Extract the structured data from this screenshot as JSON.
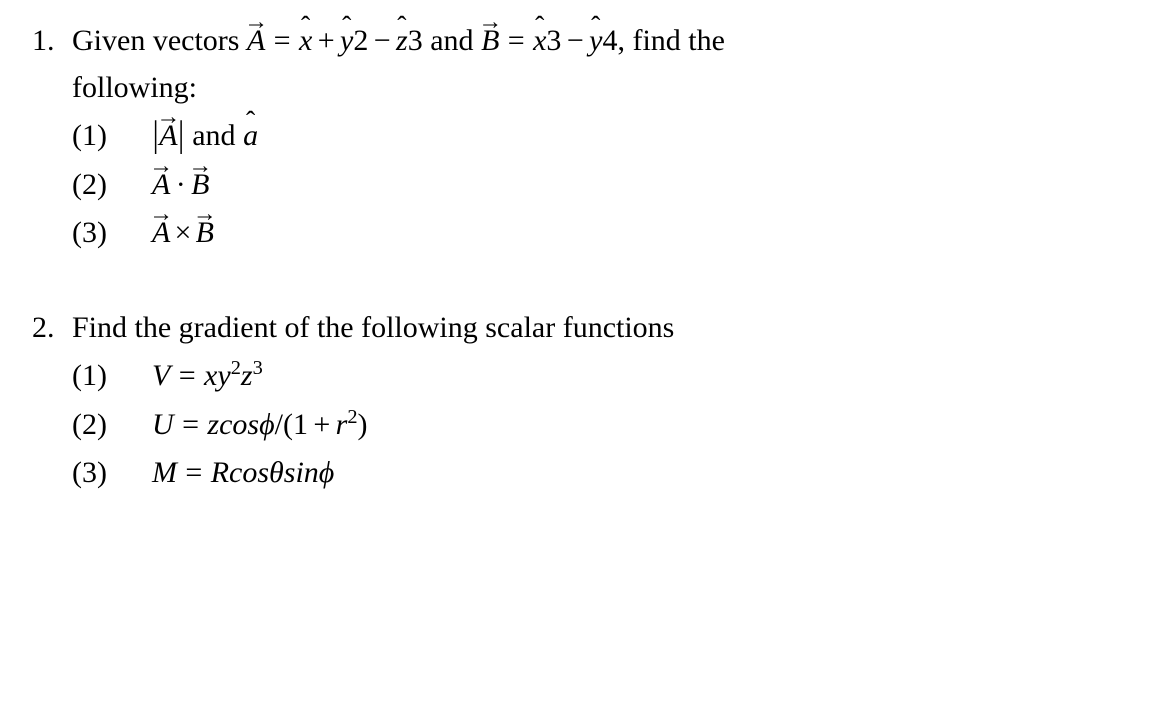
{
  "font_family": "Times New Roman",
  "base_fontsize_pt": 22,
  "text_color": "#000000",
  "background_color": "#ffffff",
  "problems": [
    {
      "number": "1.",
      "intro_before_A": "Given vectors ",
      "A_letter": "A",
      "eq1": "=",
      "xhat": "x",
      "plus": "+",
      "yhat": "y",
      "two": "2",
      "minus1": "−",
      "zhat": "z",
      "three": "3",
      "and_word": " and ",
      "B_letter": "B",
      "eq2": "=",
      "xhat2": "x",
      "three2": "3",
      "minus2": "−",
      "yhat2": "y",
      "four": "4",
      "tail": ", find the",
      "line2": "following:",
      "subs": [
        {
          "num": "(1)",
          "A": "A",
          "and": " and ",
          "ahat": "a"
        },
        {
          "num": "(2)",
          "A": "A",
          "B": "B"
        },
        {
          "num": "(3)",
          "A": "A",
          "B": "B"
        }
      ]
    },
    {
      "number": "2.",
      "intro": "Find the gradient of the following scalar functions",
      "subs": [
        {
          "num": "(1)",
          "lhs": "V",
          "eq": "=",
          "x": "x",
          "y": "y",
          "y_exp": "2",
          "z": "z",
          "z_exp": "3"
        },
        {
          "num": "(2)",
          "lhs": "U",
          "eq": "=",
          "z": "z",
          "cos": "cos",
          "phi": "ϕ",
          "slash": "/",
          "open": "(",
          "one": "1",
          "plus": "+",
          "r": "r",
          "r_exp": "2",
          "close": ")"
        },
        {
          "num": "(3)",
          "lhs": "M",
          "eq": "=",
          "R": "R",
          "cos": "cos",
          "theta": "θ",
          "sin": "sin",
          "phi": "ϕ"
        }
      ]
    }
  ]
}
